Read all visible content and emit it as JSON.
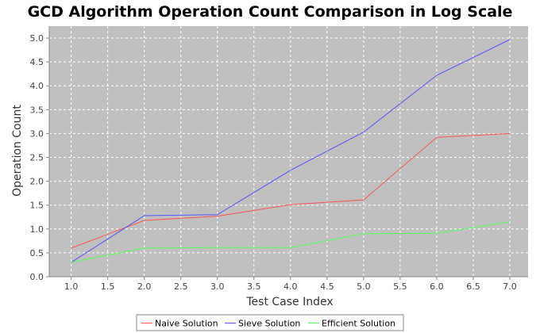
{
  "chart_data": {
    "type": "line",
    "title": "GCD Algorithm Operation Count Comparison in Log Scale",
    "xlabel": "Test Case Index",
    "ylabel": "Operation Count",
    "xlim": [
      0.7,
      7.25
    ],
    "ylim": [
      0.0,
      5.25
    ],
    "xticks": [
      "1.0",
      "1.5",
      "2.0",
      "2.5",
      "3.0",
      "3.5",
      "4.0",
      "4.5",
      "5.0",
      "5.5",
      "6.0",
      "6.5",
      "7.0"
    ],
    "yticks": [
      "0.0",
      "0.5",
      "1.0",
      "1.5",
      "2.0",
      "2.5",
      "3.0",
      "3.5",
      "4.0",
      "4.5",
      "5.0"
    ],
    "grid": true,
    "legend_position": "bottom",
    "plot_background": "#c0c0c0",
    "grid_color": "#ffffff",
    "x": [
      1,
      2,
      3,
      4,
      5,
      6,
      7
    ],
    "series": [
      {
        "name": "Naive Solution",
        "color": "#ff5555",
        "values": [
          0.6,
          1.18,
          1.27,
          1.51,
          1.61,
          2.92,
          3.0
        ]
      },
      {
        "name": "Sieve Solution",
        "color": "#5555ff",
        "values": [
          0.3,
          1.28,
          1.3,
          2.23,
          3.03,
          4.22,
          4.97
        ]
      },
      {
        "name": "Efficient Solution",
        "color": "#55ff55",
        "values": [
          0.3,
          0.6,
          0.61,
          0.61,
          0.9,
          0.91,
          1.15
        ]
      }
    ]
  }
}
